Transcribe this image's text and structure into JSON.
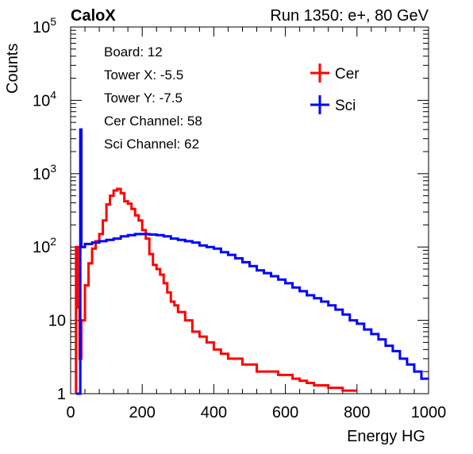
{
  "header": {
    "left_label": "CaloX",
    "right_label": "Run 1350: e+, 80 GeV"
  },
  "info_box": [
    "Board: 12",
    "Tower X: -5.5",
    "Tower Y: -7.5",
    "Cer Channel: 58",
    "Sci Channel: 62"
  ],
  "chart_data": {
    "type": "line",
    "xlabel": "Energy HG",
    "ylabel": "Counts",
    "xlim": [
      0,
      1000
    ],
    "ylim": [
      1,
      100000
    ],
    "y_scale": "log",
    "grid": false,
    "legend_position": "top-right",
    "x_ticks": [
      "0",
      "200",
      "400",
      "600",
      "800",
      "1000"
    ],
    "y_ticks": [
      {
        "value": 1,
        "base": "1",
        "exp": ""
      },
      {
        "value": 10,
        "base": "10",
        "exp": ""
      },
      {
        "value": 100,
        "base": "10",
        "exp": "2"
      },
      {
        "value": 1000,
        "base": "10",
        "exp": "3"
      },
      {
        "value": 10000,
        "base": "10",
        "exp": "4"
      },
      {
        "value": 100000,
        "base": "10",
        "exp": "5"
      }
    ],
    "series": [
      {
        "name": "Cer",
        "color": "#ff0000",
        "x": [
          15,
          20,
          25,
          30,
          40,
          50,
          60,
          70,
          80,
          90,
          100,
          110,
          120,
          130,
          140,
          150,
          160,
          170,
          180,
          190,
          200,
          210,
          220,
          230,
          240,
          250,
          260,
          270,
          280,
          290,
          300,
          320,
          340,
          360,
          380,
          400,
          420,
          440,
          460,
          480,
          500,
          520,
          540,
          560,
          580,
          600,
          620,
          640,
          660,
          680,
          700,
          720,
          740,
          760,
          780
        ],
        "values": [
          100,
          15,
          3,
          10,
          30,
          60,
          95,
          120,
          150,
          230,
          380,
          500,
          590,
          620,
          540,
          420,
          390,
          330,
          270,
          230,
          170,
          130,
          80,
          57,
          50,
          42,
          32,
          24,
          18,
          16,
          13,
          10,
          7,
          6,
          5,
          4,
          3.5,
          3,
          3,
          2.5,
          2.5,
          2,
          2,
          2,
          1.8,
          1.8,
          1.6,
          1.5,
          1.4,
          1.3,
          1.3,
          1.2,
          1.2,
          1.1,
          1.1
        ]
      },
      {
        "name": "Sci",
        "color": "#0000ff",
        "x": [
          15,
          20,
          25,
          27,
          30,
          40,
          60,
          80,
          100,
          120,
          140,
          160,
          180,
          200,
          220,
          240,
          260,
          280,
          300,
          320,
          340,
          360,
          380,
          400,
          420,
          440,
          460,
          480,
          500,
          520,
          540,
          560,
          580,
          600,
          620,
          640,
          660,
          680,
          700,
          720,
          740,
          760,
          780,
          800,
          820,
          840,
          860,
          880,
          900,
          920,
          940,
          960,
          980
        ],
        "values": [
          1,
          1,
          1,
          4000,
          100,
          110,
          115,
          120,
          125,
          130,
          140,
          145,
          150,
          150,
          148,
          145,
          140,
          130,
          125,
          120,
          115,
          105,
          100,
          95,
          85,
          78,
          70,
          62,
          55,
          48,
          44,
          40,
          36,
          32,
          28,
          25,
          22,
          20,
          18,
          16,
          14,
          12,
          10,
          9,
          7.5,
          6.5,
          5.5,
          4.5,
          3.8,
          3,
          2.5,
          2,
          1.6
        ]
      }
    ]
  }
}
